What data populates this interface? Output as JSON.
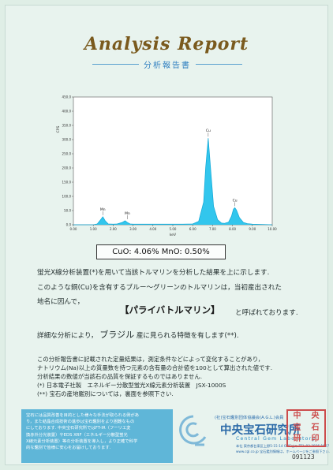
{
  "header": {
    "title": "Analysis Report",
    "subtitle": "分析報告書"
  },
  "chart_data": {
    "type": "line",
    "ylabel": "CPS",
    "xlabel": "keV",
    "xlim": [
      0,
      10
    ],
    "ylim": [
      0,
      450
    ],
    "x_ticks": [
      "0.00",
      "1.00",
      "2.00",
      "3.00",
      "4.00",
      "5.00",
      "6.00",
      "7.00",
      "8.00",
      "9.00",
      "10.00"
    ],
    "y_ticks": [
      "0.0",
      "50.0",
      "100.0",
      "150.0",
      "200.0",
      "250.0",
      "300.0",
      "350.0",
      "400.0",
      "450.0"
    ],
    "x": [
      0.0,
      1.0,
      1.2,
      1.35,
      1.48,
      1.6,
      1.75,
      2.0,
      2.2,
      2.45,
      2.6,
      2.72,
      2.85,
      3.0,
      3.5,
      4.0,
      4.5,
      5.0,
      5.5,
      6.0,
      6.3,
      6.55,
      6.65,
      6.78,
      6.92,
      7.05,
      7.25,
      7.45,
      7.6,
      7.8,
      7.95,
      8.05,
      8.12,
      8.2,
      8.35,
      8.55,
      8.75,
      9.0,
      9.5,
      10.0
    ],
    "y": [
      0,
      0,
      3,
      16,
      28,
      14,
      3,
      2,
      3,
      8,
      14,
      8,
      3,
      2,
      2,
      2,
      2,
      2,
      2,
      3,
      12,
      80,
      200,
      305,
      180,
      65,
      18,
      6,
      5,
      9,
      30,
      55,
      60,
      52,
      25,
      8,
      4,
      2,
      1,
      0
    ],
    "peak_labels": [
      {
        "label": "Mn",
        "x": 1.48,
        "y": 28
      },
      {
        "label": "Mn",
        "x": 2.72,
        "y": 14
      },
      {
        "label": "Cu",
        "x": 6.78,
        "y": 305
      },
      {
        "label": "Cu",
        "x": 8.12,
        "y": 60
      }
    ],
    "color": "#27c3ec",
    "grid": false
  },
  "result": "CuO: 4.06%  MnO: 0.50%",
  "body": {
    "line1": "蛍光X線分析装置(*)を用いて当該トルマリンを分析した結果を上に示します.",
    "line2": "このような銅(Cu)を含有するブルー～グリーンのトルマリンは，当初産出された",
    "line3": "地名に因んで，",
    "gem_name": "【パライバトルマリン】",
    "line4_suffix": "と呼ばれております.",
    "line5_prefix": "詳細な分析により，",
    "origin": "ブラジル",
    "line5_suffix": "産に見られる特徴を有します(**)."
  },
  "notes": [
    "この分析報告書に記載された定量結果は，測定条件などによって変化することがあり，",
    "ナトリウム(Na)以上の質量数を持つ元素の含有量の合計値を100として算出された値です.",
    "分析結果の数値が当該石の品質を保証するものではありません.",
    "(*) 日本電子社製　エネルギー分散型蛍光X線元素分析装置　JSX-1000S",
    "(**) 宝石の産地鑑別については，裏面を参照下さい."
  ],
  "infobox_lines": [
    "宝石には品質改善を目的とした様々な手法が取られる例があ",
    "り，また結晶合成技術の進歩は宝石鑑別をより困難なもの",
    "にしております. 中央宝石研究所ではFT-IR（フーリエ変",
    "換赤外分光装置）やEDS XRF（エネルギー分散型蛍光",
    "X線元素分析装置）等の分析装置を導入し，より正確で科学",
    "的な鑑別で皆様に安心をお届けしております."
  ],
  "org": {
    "small_top": "(社)宝石鑑別団体協議会(A.G.L.)会員",
    "name_jp": "中央宝石研究所",
    "name_en": "Central Gem Laboratory",
    "address": "本社 東京都台東区上野5-15-14 ONEビル TEL 03-3836-1627",
    "web": "www.cgl.co.jp  宝石鑑別情報は，ホームページをご参照下さい."
  },
  "seal_chars": [
    "中",
    "央",
    "宝",
    "石",
    "研",
    "印"
  ],
  "serial": "091123"
}
